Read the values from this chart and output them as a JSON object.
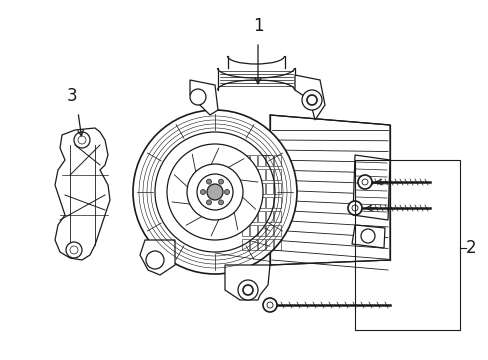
{
  "bg_color": "#ffffff",
  "line_color": "#1a1a1a",
  "lw": 0.9,
  "label1": "1",
  "label2": "2",
  "label3": "3",
  "fig_w": 4.89,
  "fig_h": 3.6,
  "dpi": 100
}
